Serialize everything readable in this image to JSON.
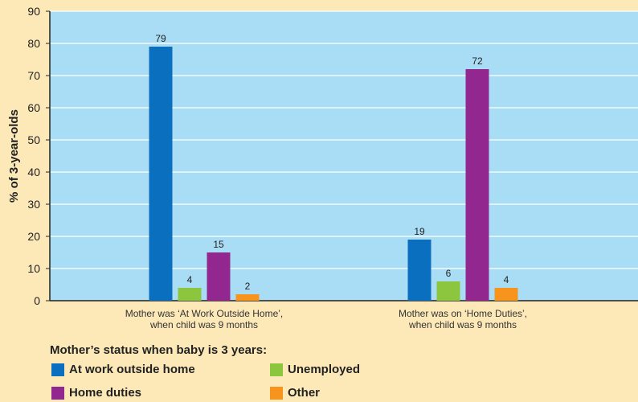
{
  "chart_data": {
    "type": "bar",
    "ylabel": "% of 3-year-olds",
    "ylim": [
      0,
      90
    ],
    "yticks": [
      "0",
      "10",
      "20",
      "30",
      "40",
      "50",
      "60",
      "70",
      "80",
      "90"
    ],
    "categories": [
      [
        "Mother was ‘At Work Outside Home’,",
        "when child was 9 months"
      ],
      [
        "Mother was on ‘Home Duties’,",
        "when child was 9 months"
      ]
    ],
    "series": [
      {
        "name": "At work outside home",
        "color": "#0a6fbe",
        "values": [
          79,
          19
        ]
      },
      {
        "name": "Unemployed",
        "color": "#8cc63f",
        "values": [
          4,
          6
        ]
      },
      {
        "name": "Home duties",
        "color": "#92278f",
        "values": [
          15,
          72
        ]
      },
      {
        "name": "Other",
        "color": "#f7941d",
        "values": [
          2,
          4
        ]
      }
    ],
    "grid": true,
    "plot_background": "#a9dcf5",
    "gridline_color": "#ffffff"
  },
  "legend": {
    "title": "Mother’s status when baby is 3 years:",
    "items": [
      {
        "label": "At work outside home",
        "color": "#0a6fbe"
      },
      {
        "label": "Unemployed",
        "color": "#8cc63f"
      },
      {
        "label": "Home duties",
        "color": "#92278f"
      },
      {
        "label": "Other",
        "color": "#f7941d"
      }
    ]
  }
}
